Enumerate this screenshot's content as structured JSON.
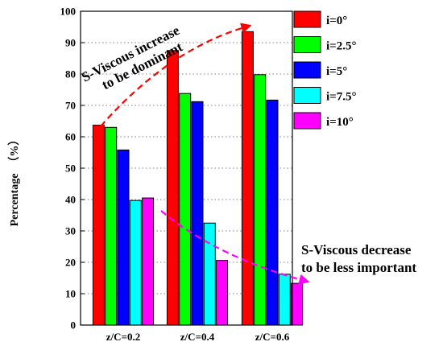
{
  "chart_data": {
    "type": "bar",
    "ylabel": "Percentage  （%）",
    "xlabel": "",
    "ylim": [
      0,
      100
    ],
    "yticks": [
      0,
      10,
      20,
      30,
      40,
      50,
      60,
      70,
      80,
      90,
      100
    ],
    "grid": "horizontal-dotted",
    "legend_position": "top-right",
    "categories": [
      "z/C=0.2",
      "z/C=0.4",
      "z/C=0.6"
    ],
    "series": [
      {
        "name": "i=0°",
        "color": "#ff0000",
        "values": [
          63.7,
          87.5,
          93.5
        ]
      },
      {
        "name": "i=2.5°",
        "color": "#00ff00",
        "values": [
          63.0,
          73.8,
          79.8
        ]
      },
      {
        "name": "i=5°",
        "color": "#0000ff",
        "values": [
          55.8,
          71.2,
          71.7
        ]
      },
      {
        "name": "i=7.5°",
        "color": "#00ffff",
        "values": [
          39.7,
          32.5,
          16.2
        ]
      },
      {
        "name": "i=10°",
        "color": "#ff00ff",
        "values": [
          40.5,
          20.6,
          13.3
        ]
      }
    ],
    "annotations": {
      "increase": {
        "lines": [
          "S-Viscous increase",
          "to be dominant"
        ],
        "arrow_color": "#ff0000"
      },
      "decrease": {
        "lines": [
          "S-Viscous decrease",
          "to be less important"
        ],
        "arrow_color": "#ff00ff"
      }
    }
  }
}
